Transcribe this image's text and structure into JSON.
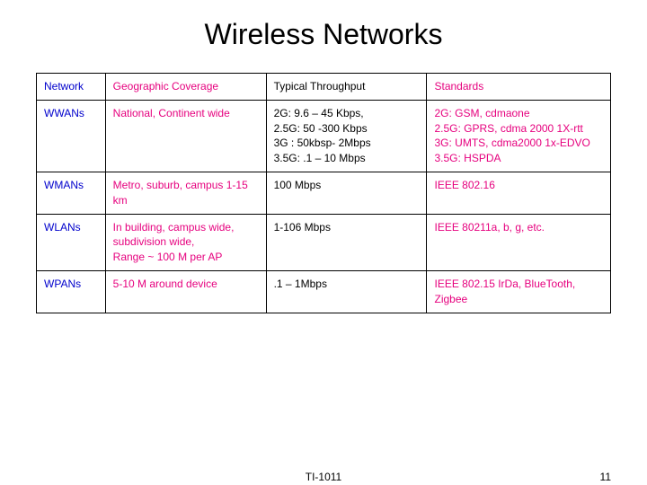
{
  "title": "Wireless Networks",
  "footer": {
    "code": "TI-1011",
    "page": "11"
  },
  "colors": {
    "blue": "#0000cc",
    "pink": "#e6007e",
    "black": "#000000",
    "border": "#000000",
    "background": "#ffffff"
  },
  "table": {
    "type": "table",
    "column_widths_pct": [
      12,
      28,
      28,
      32
    ],
    "headers": [
      {
        "label": "Network",
        "color": "blue"
      },
      {
        "label": "Geographic Coverage",
        "color": "pink"
      },
      {
        "label": "Typical Throughput",
        "color": "black"
      },
      {
        "label": "Standards",
        "color": "pink"
      }
    ],
    "rows": [
      {
        "network": "WWANs",
        "coverage": "National, Continent wide",
        "throughput": "2G: 9.6 – 45 Kbps,\n2.5G: 50 -300 Kbps\n3G :  50kbsp- 2Mbps\n3.5G: .1 – 10 Mbps",
        "standards": "2G: GSM, cdmaone\n2.5G: GPRS, cdma 2000 1X-rtt\n3G: UMTS, cdma2000 1x-EDVO\n3.5G: HSPDA"
      },
      {
        "network": "WMANs",
        "coverage": "Metro, suburb, campus 1-15 km",
        "throughput": "100 Mbps",
        "standards": "IEEE 802.16"
      },
      {
        "network": "WLANs",
        "coverage": "In building, campus wide, subdivision wide,\nRange ~ 100 M per AP",
        "throughput": "1-106 Mbps",
        "standards": "IEEE 80211a, b, g, etc."
      },
      {
        "network": "WPANs",
        "coverage": "5-10 M around device",
        "throughput": ".1 – 1Mbps",
        "standards": "IEEE 802.15 IrDa, BlueTooth, Zigbee"
      }
    ]
  }
}
